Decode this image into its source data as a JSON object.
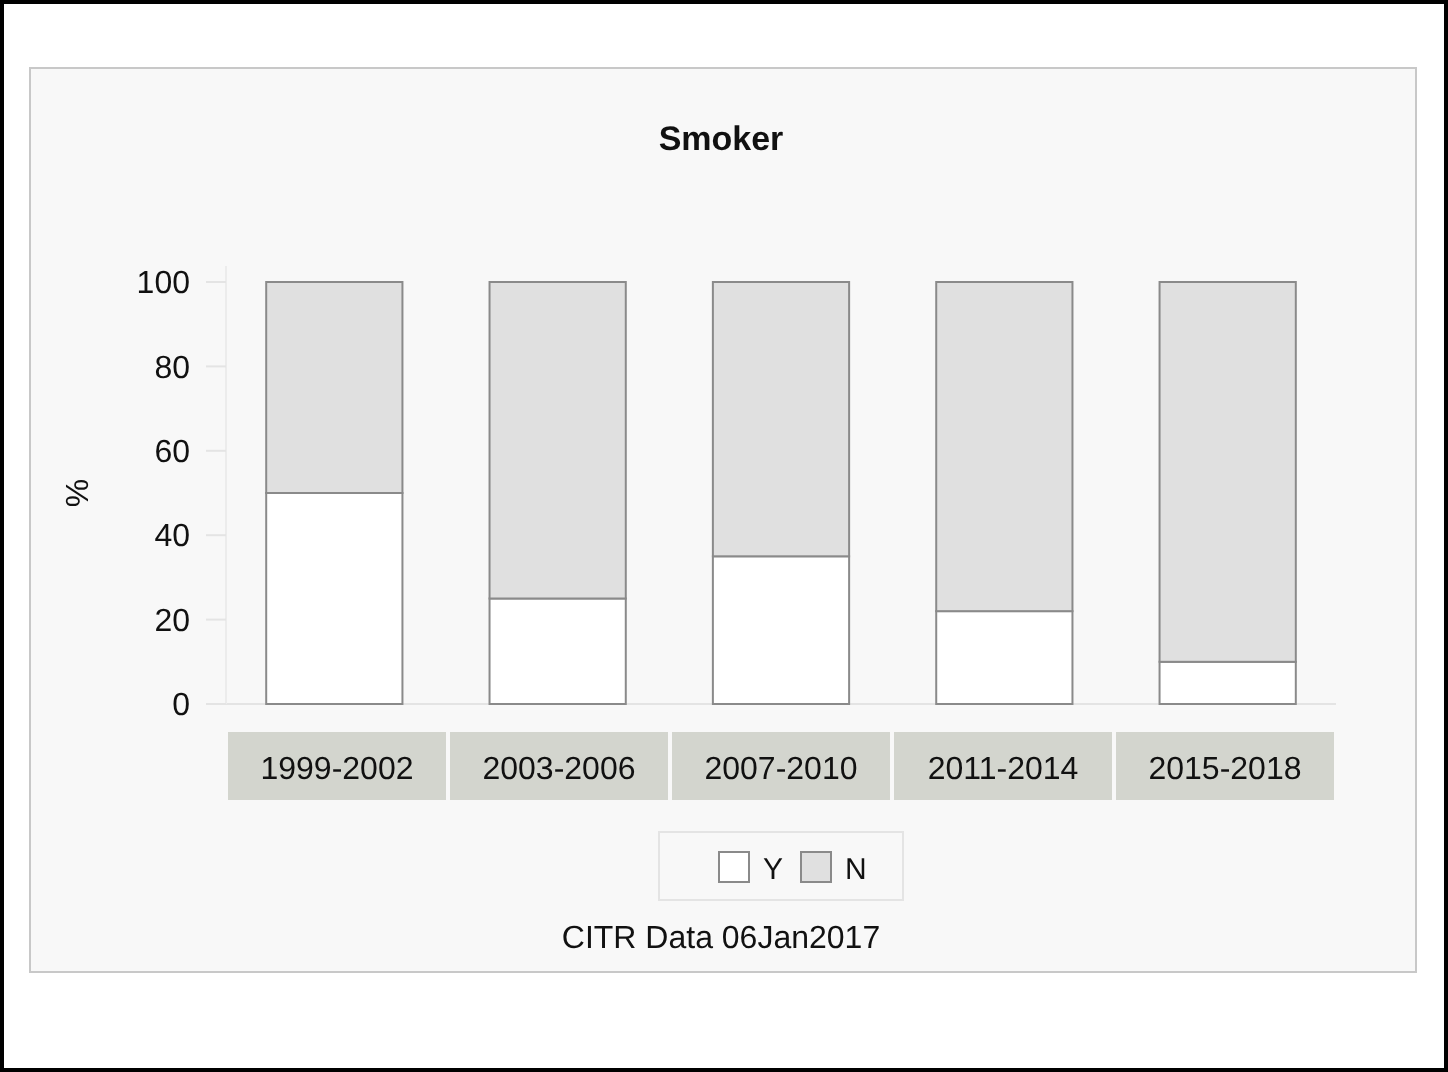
{
  "chart_data": {
    "type": "bar",
    "title": "Smoker",
    "ylabel": "%",
    "categories": [
      "1999-2002",
      "2003-2006",
      "2007-2010",
      "2011-2014",
      "2015-2018"
    ],
    "series": [
      {
        "name": "Y",
        "color": "#ffffff",
        "values": [
          50,
          25,
          35,
          22,
          10
        ]
      },
      {
        "name": "N",
        "color": "#e0e0e0",
        "values": [
          50,
          75,
          65,
          78,
          90
        ]
      }
    ],
    "stacked": true,
    "ylim": [
      0,
      100
    ],
    "yticks": [
      0,
      20,
      40,
      60,
      80,
      100
    ],
    "grid": false,
    "legend": "bottom",
    "annotations": [
      "CITR  Data 06Jan2017"
    ]
  }
}
